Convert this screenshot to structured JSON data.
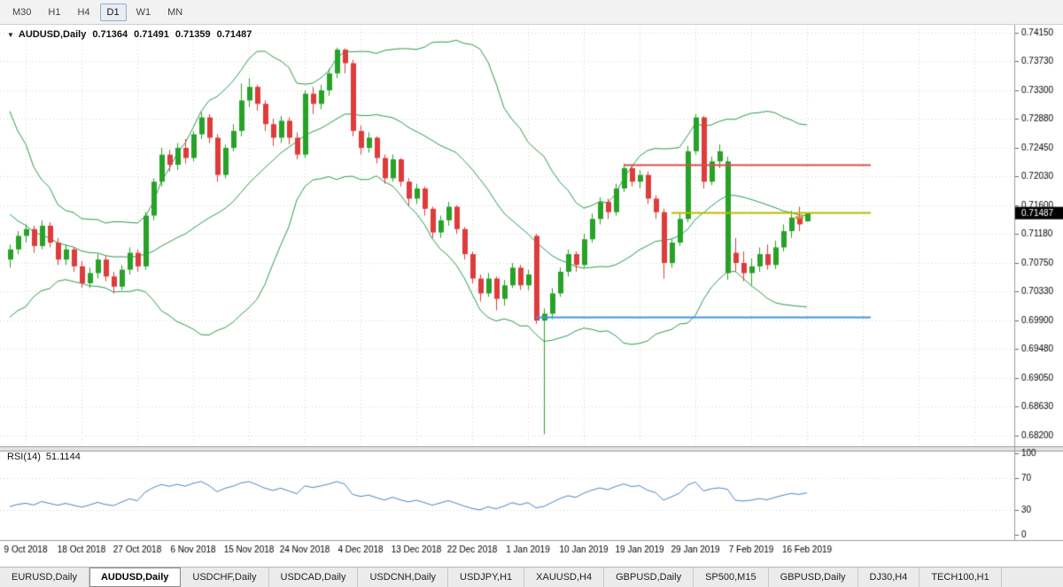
{
  "toolbar": {
    "timeframes": [
      {
        "label": "M30",
        "active": false
      },
      {
        "label": "H1",
        "active": false
      },
      {
        "label": "H4",
        "active": false
      },
      {
        "label": "D1",
        "active": true
      },
      {
        "label": "W1",
        "active": false
      },
      {
        "label": "MN",
        "active": false
      }
    ]
  },
  "chart": {
    "symbol": "AUDUSD,Daily",
    "open": "0.71364",
    "high": "0.71491",
    "low": "0.71359",
    "close": "0.71487",
    "price_label": "0.71487"
  },
  "rsi": {
    "label": "RSI(14)",
    "value": "51.1144"
  },
  "bottom_tabs": {
    "active_index": 1,
    "items": [
      "EURUSD,Daily",
      "AUDUSD,Daily",
      "USDCHF,Daily",
      "USDCAD,Daily",
      "USDCNH,Daily",
      "USDJPY,H1",
      "XAUUSD,H4",
      "GBPUSD,Daily",
      "SP500,M15",
      "GBPUSD,Daily",
      "DJ30,H4",
      "TECH100,H1"
    ]
  },
  "colors": {
    "background": "#ffffff",
    "grid": "#d6d6d6",
    "up": "#27a227",
    "down": "#df3b3b",
    "bands": "#2e9b4e",
    "rsi": "#4a86c8",
    "axis_line": "#9c9c9c",
    "axis_text": "#000000",
    "price_label_bg": "#000000",
    "price_label_text": "#ffffff"
  },
  "chart_data": {
    "type": "candlestick",
    "title": "AUDUSD,Daily",
    "symbol": "AUDUSD",
    "timeframe": "Daily",
    "current_ohlc": {
      "open": 0.71364,
      "high": 0.71491,
      "low": 0.71359,
      "close": 0.71487
    },
    "ylim": [
      0.682,
      0.7415
    ],
    "price_ticks": [
      "0.74150",
      "0.73730",
      "0.73300",
      "0.72880",
      "0.72450",
      "0.72030",
      "0.71600",
      "0.71180",
      "0.70750",
      "0.70330",
      "0.69900",
      "0.69480",
      "0.69050",
      "0.68630",
      "0.68200"
    ],
    "date_labels": [
      {
        "text": "9 Oct 2018",
        "index": 2
      },
      {
        "text": "18 Oct 2018",
        "index": 9
      },
      {
        "text": "27 Oct 2018",
        "index": 16
      },
      {
        "text": "6 Nov 2018",
        "index": 23
      },
      {
        "text": "15 Nov 2018",
        "index": 30
      },
      {
        "text": "24 Nov 2018",
        "index": 37
      },
      {
        "text": "4 Dec 2018",
        "index": 44
      },
      {
        "text": "13 Dec 2018",
        "index": 51
      },
      {
        "text": "22 Dec 2018",
        "index": 58
      },
      {
        "text": "1 Jan 2019",
        "index": 65
      },
      {
        "text": "10 Jan 2019",
        "index": 72
      },
      {
        "text": "19 Jan 2019",
        "index": 79
      },
      {
        "text": "29 Jan 2019",
        "index": 86
      },
      {
        "text": "7 Feb 2019",
        "index": 93
      },
      {
        "text": "16 Feb 2019",
        "index": 100
      }
    ],
    "indicators": {
      "bollinger": {
        "period": 20,
        "deviations": 2
      },
      "rsi": {
        "period": 14,
        "value": 51.1144,
        "levels": [
          70,
          30
        ],
        "range": [
          0,
          100
        ],
        "ticks": [
          "100",
          "70",
          "30",
          "0"
        ]
      }
    },
    "hlines": [
      {
        "price": 0.722,
        "from": 77,
        "to": 108,
        "color": "#d6514c",
        "width": 2
      },
      {
        "price": 0.7149,
        "from": 83,
        "to": 108,
        "color": "#b9ba00",
        "width": 2
      },
      {
        "price": 0.6995,
        "from": 66,
        "to": 108,
        "color": "#3f96db",
        "width": 2
      }
    ],
    "marker": {
      "index": 99,
      "price": 0.7142,
      "color": "#e8862c"
    },
    "pre_closes": [
      0.734,
      0.731,
      0.726,
      0.729,
      0.723,
      0.719,
      0.722,
      0.716,
      0.713,
      0.716,
      0.711,
      0.709,
      0.713,
      0.708,
      0.706,
      0.71,
      0.705,
      0.708,
      0.711,
      0.7085
    ],
    "candles": [
      [
        0.708,
        0.7102,
        0.7068,
        0.7095
      ],
      [
        0.7095,
        0.7122,
        0.7088,
        0.7115
      ],
      [
        0.7115,
        0.7132,
        0.7105,
        0.7125
      ],
      [
        0.7125,
        0.713,
        0.709,
        0.71
      ],
      [
        0.71,
        0.7138,
        0.7095,
        0.713
      ],
      [
        0.713,
        0.7135,
        0.7098,
        0.7105
      ],
      [
        0.7105,
        0.7112,
        0.7072,
        0.708
      ],
      [
        0.708,
        0.7102,
        0.7072,
        0.7095
      ],
      [
        0.7095,
        0.7098,
        0.7062,
        0.707
      ],
      [
        0.707,
        0.7078,
        0.7038,
        0.7045
      ],
      [
        0.7045,
        0.7068,
        0.7038,
        0.706
      ],
      [
        0.706,
        0.7088,
        0.7052,
        0.708
      ],
      [
        0.708,
        0.7085,
        0.7048,
        0.7055
      ],
      [
        0.7055,
        0.7062,
        0.703,
        0.704
      ],
      [
        0.704,
        0.7072,
        0.7035,
        0.7065
      ],
      [
        0.7065,
        0.7098,
        0.7058,
        0.709
      ],
      [
        0.709,
        0.7095,
        0.7062,
        0.707
      ],
      [
        0.707,
        0.715,
        0.7065,
        0.7145
      ],
      [
        0.7145,
        0.72,
        0.7138,
        0.7195
      ],
      [
        0.7195,
        0.7245,
        0.7188,
        0.7235
      ],
      [
        0.7235,
        0.7242,
        0.721,
        0.722
      ],
      [
        0.722,
        0.7252,
        0.7212,
        0.7245
      ],
      [
        0.7245,
        0.7258,
        0.7222,
        0.723
      ],
      [
        0.723,
        0.727,
        0.7225,
        0.7265
      ],
      [
        0.7265,
        0.7298,
        0.7258,
        0.729
      ],
      [
        0.729,
        0.7295,
        0.7252,
        0.726
      ],
      [
        0.726,
        0.7265,
        0.7195,
        0.7205
      ],
      [
        0.7205,
        0.725,
        0.72,
        0.7245
      ],
      [
        0.7245,
        0.728,
        0.724,
        0.727
      ],
      [
        0.727,
        0.734,
        0.7262,
        0.7315
      ],
      [
        0.7315,
        0.7348,
        0.7305,
        0.7335
      ],
      [
        0.7335,
        0.7338,
        0.73,
        0.731
      ],
      [
        0.731,
        0.7315,
        0.727,
        0.728
      ],
      [
        0.728,
        0.7288,
        0.7248,
        0.726
      ],
      [
        0.726,
        0.7292,
        0.7252,
        0.7285
      ],
      [
        0.7285,
        0.729,
        0.725,
        0.726
      ],
      [
        0.726,
        0.7268,
        0.7228,
        0.7235
      ],
      [
        0.7235,
        0.733,
        0.723,
        0.7325
      ],
      [
        0.7325,
        0.7335,
        0.7295,
        0.731
      ],
      [
        0.731,
        0.7338,
        0.7302,
        0.733
      ],
      [
        0.733,
        0.7362,
        0.7322,
        0.7355
      ],
      [
        0.7355,
        0.7393,
        0.7348,
        0.739
      ],
      [
        0.739,
        0.7392,
        0.7355,
        0.737
      ],
      [
        0.737,
        0.7375,
        0.7262,
        0.727
      ],
      [
        0.727,
        0.7278,
        0.7235,
        0.7245
      ],
      [
        0.7245,
        0.7268,
        0.7238,
        0.726
      ],
      [
        0.726,
        0.7262,
        0.7222,
        0.723
      ],
      [
        0.723,
        0.7235,
        0.7192,
        0.72
      ],
      [
        0.72,
        0.7235,
        0.7195,
        0.7228
      ],
      [
        0.7228,
        0.723,
        0.7188,
        0.7195
      ],
      [
        0.7195,
        0.72,
        0.716,
        0.717
      ],
      [
        0.717,
        0.7192,
        0.7162,
        0.7185
      ],
      [
        0.7185,
        0.7188,
        0.7145,
        0.7155
      ],
      [
        0.7155,
        0.7158,
        0.7112,
        0.712
      ],
      [
        0.712,
        0.7145,
        0.7112,
        0.7138
      ],
      [
        0.7138,
        0.7165,
        0.713,
        0.7158
      ],
      [
        0.7158,
        0.716,
        0.7118,
        0.7125
      ],
      [
        0.7125,
        0.7128,
        0.708,
        0.7088
      ],
      [
        0.7088,
        0.7092,
        0.7045,
        0.7052
      ],
      [
        0.7052,
        0.7058,
        0.7018,
        0.703
      ],
      [
        0.703,
        0.706,
        0.7025,
        0.7052
      ],
      [
        0.7052,
        0.7055,
        0.7005,
        0.7022
      ],
      [
        0.7022,
        0.705,
        0.7012,
        0.7042
      ],
      [
        0.7042,
        0.7075,
        0.7038,
        0.7068
      ],
      [
        0.7068,
        0.7072,
        0.7035,
        0.7042
      ],
      [
        0.7042,
        0.7065,
        0.7035,
        0.7058
      ],
      [
        0.7115,
        0.7118,
        0.6985,
        0.699
      ],
      [
        0.699,
        0.7008,
        0.6822,
        0.7
      ],
      [
        0.7,
        0.7038,
        0.6992,
        0.703
      ],
      [
        0.703,
        0.7068,
        0.7025,
        0.7062
      ],
      [
        0.7062,
        0.7095,
        0.7055,
        0.7088
      ],
      [
        0.7088,
        0.7092,
        0.7062,
        0.7072
      ],
      [
        0.7072,
        0.7118,
        0.7068,
        0.711
      ],
      [
        0.711,
        0.7148,
        0.7105,
        0.714
      ],
      [
        0.714,
        0.7172,
        0.7132,
        0.7165
      ],
      [
        0.7165,
        0.717,
        0.714,
        0.715
      ],
      [
        0.715,
        0.7192,
        0.7145,
        0.7185
      ],
      [
        0.7185,
        0.7222,
        0.718,
        0.7215
      ],
      [
        0.7215,
        0.722,
        0.7188,
        0.7195
      ],
      [
        0.7195,
        0.7212,
        0.7185,
        0.7205
      ],
      [
        0.7205,
        0.721,
        0.7162,
        0.717
      ],
      [
        0.717,
        0.7175,
        0.714,
        0.715
      ],
      [
        0.715,
        0.7155,
        0.7052,
        0.7075
      ],
      [
        0.7075,
        0.711,
        0.7068,
        0.7105
      ],
      [
        0.7105,
        0.7148,
        0.71,
        0.714
      ],
      [
        0.714,
        0.7248,
        0.7135,
        0.724
      ],
      [
        0.724,
        0.7295,
        0.7235,
        0.729
      ],
      [
        0.729,
        0.7292,
        0.7185,
        0.7195
      ],
      [
        0.7195,
        0.7232,
        0.719,
        0.7225
      ],
      [
        0.7225,
        0.725,
        0.7215,
        0.724
      ],
      [
        0.706,
        0.7232,
        0.705,
        0.7225
      ],
      [
        0.709,
        0.7112,
        0.7062,
        0.7075
      ],
      [
        0.7075,
        0.7092,
        0.7048,
        0.706
      ],
      [
        0.706,
        0.7082,
        0.7042,
        0.707
      ],
      [
        0.707,
        0.7098,
        0.7062,
        0.7088
      ],
      [
        0.7088,
        0.7102,
        0.7065,
        0.7072
      ],
      [
        0.7072,
        0.7108,
        0.7066,
        0.7098
      ],
      [
        0.7098,
        0.7132,
        0.7092,
        0.7122
      ],
      [
        0.7122,
        0.7152,
        0.7112,
        0.7142
      ],
      [
        0.7142,
        0.7158,
        0.7122,
        0.7132
      ],
      [
        0.71364,
        0.71491,
        0.71359,
        0.71487
      ]
    ]
  }
}
